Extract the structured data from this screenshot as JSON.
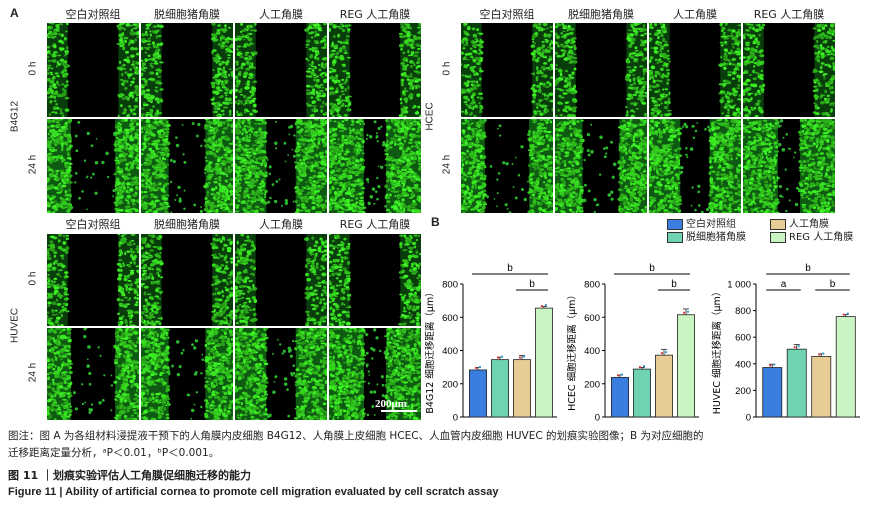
{
  "panel_a_label": "A",
  "panel_b_label": "B",
  "column_labels": [
    "空白对照组",
    "脱细胞猪角膜",
    "人工角膜",
    "REG 人工角膜"
  ],
  "row_labels": [
    "0 h",
    "24 h"
  ],
  "cell_lines": [
    "B4G12",
    "HCEC",
    "HUVEC"
  ],
  "scale_bar": "200μm",
  "legend": {
    "items": [
      {
        "label": "空白对照组",
        "color": "#3a7ee0"
      },
      {
        "label": "人工角膜",
        "color": "#e8cc96"
      },
      {
        "label": "脱细胞猪角膜",
        "color": "#6fd3b3"
      },
      {
        "label": "REG 人工角膜",
        "color": "#c9f5c2"
      }
    ]
  },
  "chart_data": [
    {
      "type": "bar",
      "ylabel": "B4G12 细胞迁移距离（μm）",
      "ylim": [
        0,
        800
      ],
      "yticks": [
        "0",
        "200",
        "400",
        "600",
        "800"
      ],
      "categories": [
        "空白对照组",
        "脱细胞猪角膜",
        "人工角膜",
        "REG 人工角膜"
      ],
      "values": [
        283,
        345,
        345,
        655
      ],
      "errors": [
        15,
        15,
        25,
        10
      ],
      "significance": [
        {
          "from": 0,
          "to": 3,
          "label": "b",
          "level": 0
        },
        {
          "from": 2,
          "to": 3,
          "label": "b",
          "level": 1
        }
      ]
    },
    {
      "type": "bar",
      "ylabel": "HCEC 细胞迁移距离（μm）",
      "ylim": [
        0,
        800
      ],
      "yticks": [
        "0",
        "200",
        "400",
        "600",
        "800"
      ],
      "categories": [
        "空白对照组",
        "脱细胞猪角膜",
        "人工角膜",
        "REG 人工角膜"
      ],
      "values": [
        238,
        288,
        372,
        615
      ],
      "errors": [
        15,
        10,
        35,
        35
      ],
      "significance": [
        {
          "from": 0,
          "to": 3,
          "label": "b",
          "level": 0
        },
        {
          "from": 2,
          "to": 3,
          "label": "b",
          "level": 1
        }
      ]
    },
    {
      "type": "bar",
      "ylabel": "HUVEC 细胞迁移距离（μm）",
      "ylim": [
        0,
        1000
      ],
      "yticks": [
        "0",
        "200",
        "400",
        "600",
        "800",
        "1 000"
      ],
      "categories": [
        "空白对照组",
        "脱细胞猪角膜",
        "人工角膜",
        "REG 人工角膜"
      ],
      "values": [
        372,
        510,
        455,
        755
      ],
      "errors": [
        25,
        35,
        20,
        15
      ],
      "significance": [
        {
          "from": 0,
          "to": 3,
          "label": "b",
          "level": 0
        },
        {
          "from": 0,
          "to": 1,
          "label": "a",
          "level": 1
        },
        {
          "from": 2,
          "to": 3,
          "label": "b",
          "level": 1
        }
      ]
    }
  ],
  "caption_line1": "图注：图 A 为各组材料浸提液干预下的人角膜内皮细胞 B4G12、人角膜上皮细胞 HCEC、人血管内皮细胞 HUVEC 的划痕实验图像；B 为对应细胞的",
  "caption_line2": "迁移距离定量分析，ᵃP＜0.01，ᵇP＜0.001。",
  "figure_title_cn": "图 11 ｜划痕实验评估人工角膜促细胞迁移的能力",
  "figure_title_en": "Figure 11  |  Ability of artificial cornea to promote cell migration evaluated by cell scratch assay"
}
